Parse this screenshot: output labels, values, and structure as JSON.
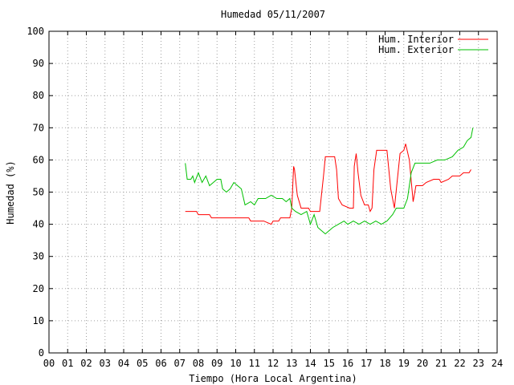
{
  "chart_data": {
    "type": "line",
    "title": "Humedad 05/11/2007",
    "xlabel": "Tiempo (Hora Local Argentina)",
    "ylabel": "Humedad (%)",
    "xlim": [
      0,
      24
    ],
    "ylim": [
      0,
      100
    ],
    "grid": true,
    "legend_position": "top-right",
    "x_ticks": [
      "00",
      "01",
      "02",
      "03",
      "04",
      "05",
      "06",
      "07",
      "08",
      "09",
      "10",
      "11",
      "12",
      "13",
      "14",
      "15",
      "16",
      "17",
      "18",
      "19",
      "20",
      "21",
      "22",
      "23",
      "24"
    ],
    "y_ticks": [
      "0",
      "10",
      "20",
      "30",
      "40",
      "50",
      "60",
      "70",
      "80",
      "90",
      "100"
    ],
    "series": [
      {
        "name": "Hum. Interior",
        "color": "#ff0000",
        "points": [
          [
            7.3,
            44
          ],
          [
            7.9,
            44
          ],
          [
            8.0,
            43
          ],
          [
            8.6,
            43
          ],
          [
            8.7,
            42
          ],
          [
            9.5,
            42
          ],
          [
            10.0,
            42
          ],
          [
            10.7,
            42
          ],
          [
            10.8,
            41
          ],
          [
            11.5,
            41
          ],
          [
            11.9,
            40
          ],
          [
            12.0,
            41
          ],
          [
            12.3,
            41
          ],
          [
            12.4,
            42
          ],
          [
            12.9,
            42
          ],
          [
            13.0,
            45
          ],
          [
            13.1,
            58
          ],
          [
            13.15,
            57
          ],
          [
            13.3,
            49
          ],
          [
            13.5,
            45
          ],
          [
            13.9,
            45
          ],
          [
            14.0,
            44
          ],
          [
            14.5,
            44
          ],
          [
            14.7,
            55
          ],
          [
            14.8,
            61
          ],
          [
            15.3,
            61
          ],
          [
            15.4,
            57
          ],
          [
            15.5,
            48
          ],
          [
            15.7,
            46
          ],
          [
            16.1,
            45
          ],
          [
            16.3,
            45
          ],
          [
            16.35,
            58
          ],
          [
            16.45,
            62
          ],
          [
            16.55,
            56
          ],
          [
            16.7,
            49
          ],
          [
            16.9,
            46
          ],
          [
            17.1,
            46
          ],
          [
            17.2,
            44
          ],
          [
            17.3,
            45
          ],
          [
            17.4,
            57
          ],
          [
            17.55,
            63
          ],
          [
            18.1,
            63
          ],
          [
            18.3,
            51
          ],
          [
            18.5,
            45
          ],
          [
            18.8,
            62
          ],
          [
            19.0,
            63
          ],
          [
            19.1,
            65
          ],
          [
            19.3,
            60
          ],
          [
            19.5,
            47
          ],
          [
            19.65,
            52
          ],
          [
            19.8,
            52
          ],
          [
            20.0,
            52
          ],
          [
            20.2,
            53
          ],
          [
            20.6,
            54
          ],
          [
            20.9,
            54
          ],
          [
            21.0,
            53
          ],
          [
            21.4,
            54
          ],
          [
            21.6,
            55
          ],
          [
            22.0,
            55
          ],
          [
            22.2,
            56
          ],
          [
            22.5,
            56
          ],
          [
            22.6,
            57
          ]
        ]
      },
      {
        "name": "Hum. Exterior",
        "color": "#00c000",
        "points": [
          [
            7.3,
            59
          ],
          [
            7.4,
            54
          ],
          [
            7.6,
            54
          ],
          [
            7.7,
            55
          ],
          [
            7.8,
            53
          ],
          [
            8.0,
            56
          ],
          [
            8.2,
            53
          ],
          [
            8.4,
            55
          ],
          [
            8.6,
            52
          ],
          [
            8.8,
            53
          ],
          [
            9.0,
            54
          ],
          [
            9.2,
            54
          ],
          [
            9.3,
            51
          ],
          [
            9.5,
            50
          ],
          [
            9.7,
            51
          ],
          [
            9.9,
            53
          ],
          [
            10.1,
            52
          ],
          [
            10.3,
            51
          ],
          [
            10.5,
            46
          ],
          [
            10.8,
            47
          ],
          [
            11.0,
            46
          ],
          [
            11.2,
            48
          ],
          [
            11.6,
            48
          ],
          [
            11.9,
            49
          ],
          [
            12.2,
            48
          ],
          [
            12.5,
            48
          ],
          [
            12.7,
            47
          ],
          [
            12.9,
            48
          ],
          [
            13.0,
            45
          ],
          [
            13.2,
            44
          ],
          [
            13.5,
            43
          ],
          [
            13.8,
            44
          ],
          [
            14.0,
            40
          ],
          [
            14.2,
            43
          ],
          [
            14.4,
            39
          ],
          [
            14.6,
            38
          ],
          [
            14.8,
            37
          ],
          [
            15.2,
            39
          ],
          [
            15.5,
            40
          ],
          [
            15.8,
            41
          ],
          [
            16.0,
            40
          ],
          [
            16.3,
            41
          ],
          [
            16.6,
            40
          ],
          [
            16.9,
            41
          ],
          [
            17.2,
            40
          ],
          [
            17.5,
            41
          ],
          [
            17.8,
            40
          ],
          [
            18.1,
            41
          ],
          [
            18.4,
            43
          ],
          [
            18.6,
            45
          ],
          [
            19.0,
            45
          ],
          [
            19.2,
            48
          ],
          [
            19.4,
            56
          ],
          [
            19.6,
            59
          ],
          [
            20.0,
            59
          ],
          [
            20.4,
            59
          ],
          [
            20.8,
            60
          ],
          [
            21.2,
            60
          ],
          [
            21.6,
            61
          ],
          [
            21.9,
            63
          ],
          [
            22.2,
            64
          ],
          [
            22.4,
            66
          ],
          [
            22.6,
            67
          ],
          [
            22.7,
            70
          ]
        ]
      }
    ]
  }
}
